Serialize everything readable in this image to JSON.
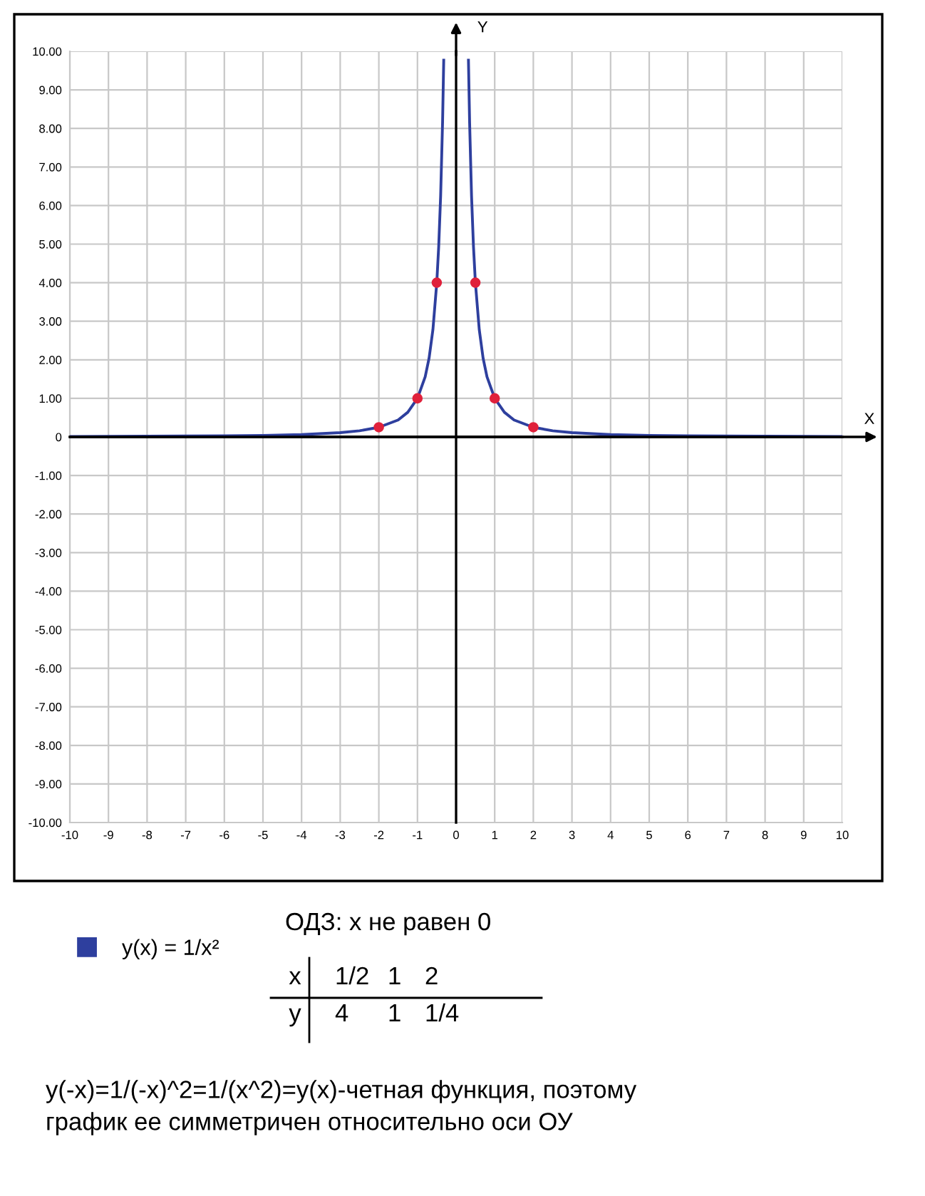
{
  "chart_data": {
    "type": "line",
    "xlabel": "X",
    "ylabel": "Y",
    "xlim": [
      -10,
      10
    ],
    "ylim": [
      -10,
      10
    ],
    "xticks": [
      -10,
      -9,
      -8,
      -7,
      -6,
      -5,
      -4,
      -3,
      -2,
      -1,
      0,
      1,
      2,
      3,
      4,
      5,
      6,
      7,
      8,
      9,
      10
    ],
    "yticks": [
      {
        "value": 10,
        "label": "10.00"
      },
      {
        "value": 9,
        "label": "9.00"
      },
      {
        "value": 8,
        "label": "8.00"
      },
      {
        "value": 7,
        "label": "7.00"
      },
      {
        "value": 6,
        "label": "6.00"
      },
      {
        "value": 5,
        "label": "5.00"
      },
      {
        "value": 4,
        "label": "4.00"
      },
      {
        "value": 3,
        "label": "3.00"
      },
      {
        "value": 2,
        "label": "2.00"
      },
      {
        "value": 1,
        "label": "1.00"
      },
      {
        "value": 0,
        "label": "0"
      },
      {
        "value": -1,
        "label": "-1.00"
      },
      {
        "value": -2,
        "label": "-2.00"
      },
      {
        "value": -3,
        "label": "-3.00"
      },
      {
        "value": -4,
        "label": "-4.00"
      },
      {
        "value": -5,
        "label": "-5.00"
      },
      {
        "value": -6,
        "label": "-6.00"
      },
      {
        "value": -7,
        "label": "-7.00"
      },
      {
        "value": -8,
        "label": "-8.00"
      },
      {
        "value": -9,
        "label": "-9.00"
      },
      {
        "value": -10,
        "label": "-10.00"
      }
    ],
    "grid": true,
    "legend": "bottom left",
    "series": [
      {
        "name": "y(x) = 1/x²",
        "color": "#2e3f9e",
        "marker": "none",
        "line_style": "solid",
        "x": [
          -10,
          -8,
          -6,
          -5,
          -4,
          -3,
          -2.5,
          -2,
          -1.5,
          -1.25,
          -1,
          -0.8,
          -0.7,
          -0.6,
          -0.5,
          -0.45,
          -0.4,
          -0.35,
          -0.32,
          0,
          0.32,
          0.35,
          0.4,
          0.45,
          0.5,
          0.6,
          0.7,
          0.8,
          1,
          1.25,
          1.5,
          2,
          2.5,
          3,
          4,
          5,
          6,
          8,
          10
        ],
        "values": [
          0.01,
          0.02,
          0.03,
          0.04,
          0.06,
          0.11,
          0.16,
          0.25,
          0.44,
          0.64,
          1,
          1.56,
          2.04,
          2.78,
          4,
          4.94,
          6.25,
          8.16,
          9.77,
          null,
          9.77,
          8.16,
          6.25,
          4.94,
          4,
          2.78,
          2.04,
          1.56,
          1,
          0.64,
          0.44,
          0.25,
          0.16,
          0.11,
          0.06,
          0.04,
          0.03,
          0.02,
          0.01
        ]
      },
      {
        "type": "scatter",
        "color": "#e0213b",
        "marker": "circle",
        "x": [
          -2,
          -1,
          -0.5,
          0.5,
          1,
          2
        ],
        "values": [
          0.25,
          1,
          4,
          4,
          1,
          0.25
        ]
      }
    ],
    "annotations": [
      "ОДЗ: x не равен 0",
      "x",
      "1/2",
      "1",
      "2",
      "y",
      "4",
      "1",
      "1/4",
      "y(-x)=1/(-x)^2=1/(x^2)=y(x)-четная функция, поэтому\nграфик ее симметричен относительно оси ОУ"
    ]
  }
}
